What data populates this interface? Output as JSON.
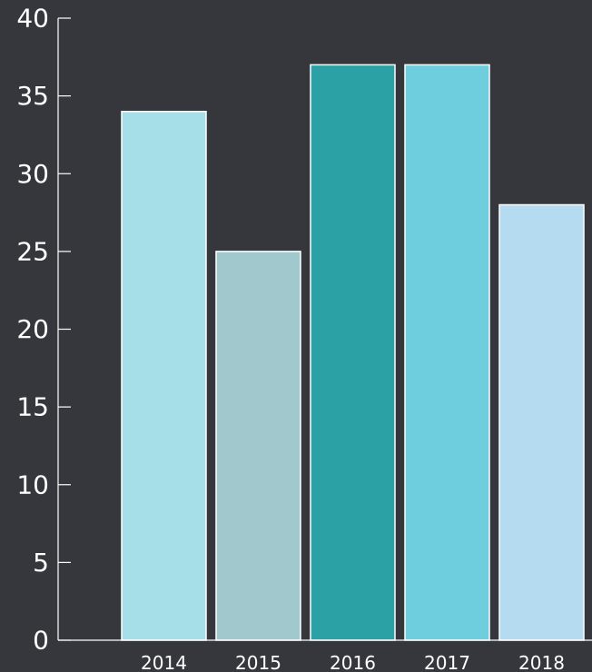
{
  "chart_data": {
    "type": "bar",
    "categories": [
      "2014",
      "2015",
      "2016",
      "2017",
      "2018"
    ],
    "values": [
      34,
      25,
      37,
      37,
      28
    ],
    "colors": [
      "#a7dfe9",
      "#a1c8cc",
      "#2ba0a5",
      "#6fcede",
      "#b5dbf0"
    ],
    "ylim": [
      0,
      40
    ],
    "yticks": [
      0,
      5,
      10,
      15,
      20,
      25,
      30,
      35,
      40
    ],
    "title": "",
    "xlabel": "",
    "ylabel": "",
    "grid": false,
    "legend": "none",
    "background": "#35373c",
    "axis_color": "#ffffff"
  }
}
